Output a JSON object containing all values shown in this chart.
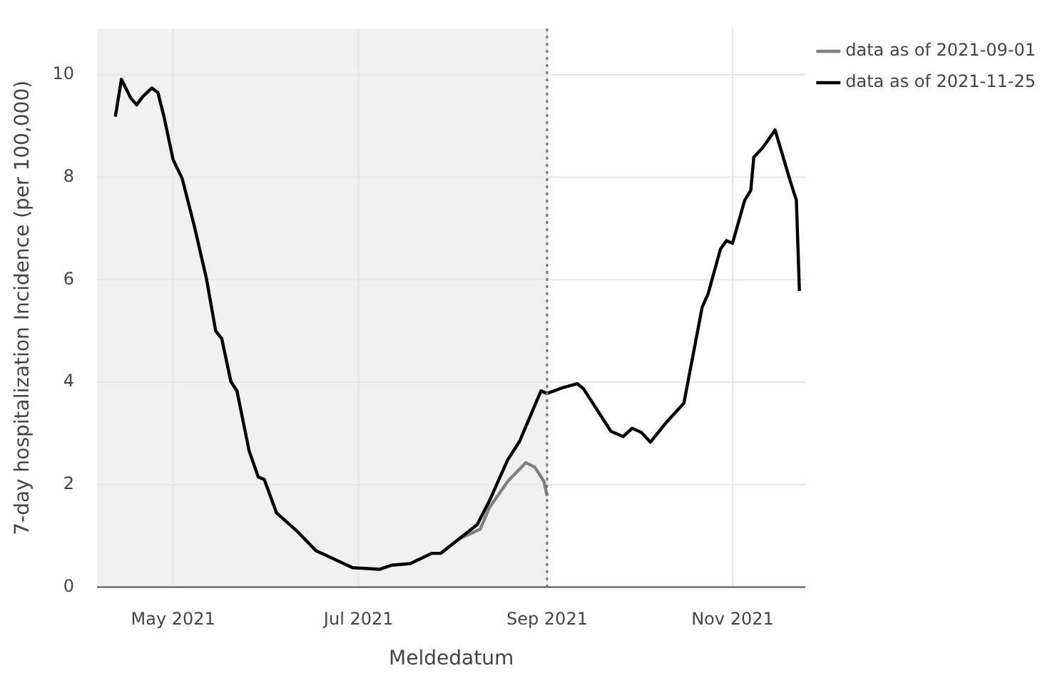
{
  "chart_data": {
    "type": "line",
    "xlabel": "Meldedatum",
    "ylabel": "7-day hospitalization Incidence (per 100,000)",
    "xlim": [
      "2021-04-06",
      "2021-11-25"
    ],
    "xticks": [
      {
        "value": "2021-05-01",
        "label": "May 2021"
      },
      {
        "value": "2021-07-01",
        "label": "Jul 2021"
      },
      {
        "value": "2021-09-01",
        "label": "Sep 2021"
      },
      {
        "value": "2021-11-01",
        "label": "Nov 2021"
      }
    ],
    "ylim": [
      0,
      10.9
    ],
    "yticks": [
      0,
      2,
      4,
      6,
      8,
      10
    ],
    "grid": true,
    "legend": "top right",
    "line_style": "solid",
    "marker": "none",
    "bands": [
      {
        "axis": "x",
        "from": "2021-04-06",
        "to": "2021-09-01",
        "color": "#f0f0f0"
      }
    ],
    "ref_lines": [
      {
        "axis": "x",
        "value": "2021-09-01",
        "color": "#777777",
        "line_style": "dotted"
      }
    ],
    "series": [
      {
        "name": "data as of 2021-09-01",
        "color": "#808080",
        "x": [
          "2021-08-03",
          "2021-08-10",
          "2021-08-13",
          "2021-08-19",
          "2021-08-25",
          "2021-08-28",
          "2021-08-31",
          "2021-09-01"
        ],
        "values": [
          0.94,
          1.13,
          1.55,
          2.06,
          2.43,
          2.34,
          2.06,
          1.78
        ]
      },
      {
        "name": "data as of 2021-11-25",
        "color": "#000000",
        "x": [
          "2021-04-12",
          "2021-04-14",
          "2021-04-17",
          "2021-04-19",
          "2021-04-21",
          "2021-04-24",
          "2021-04-26",
          "2021-04-28",
          "2021-05-01",
          "2021-05-04",
          "2021-05-08",
          "2021-05-12",
          "2021-05-15",
          "2021-05-17",
          "2021-05-20",
          "2021-05-22",
          "2021-05-26",
          "2021-05-29",
          "2021-05-31",
          "2021-06-04",
          "2021-06-11",
          "2021-06-17",
          "2021-06-24",
          "2021-06-29",
          "2021-07-08",
          "2021-07-12",
          "2021-07-18",
          "2021-07-25",
          "2021-07-28",
          "2021-08-03",
          "2021-08-09",
          "2021-08-13",
          "2021-08-19",
          "2021-08-23",
          "2021-08-27",
          "2021-08-30",
          "2021-09-01",
          "2021-09-06",
          "2021-09-11",
          "2021-09-13",
          "2021-09-22",
          "2021-09-26",
          "2021-09-29",
          "2021-10-02",
          "2021-10-05",
          "2021-10-10",
          "2021-10-16",
          "2021-10-22",
          "2021-10-24",
          "2021-10-28",
          "2021-10-30",
          "2021-11-01",
          "2021-11-05",
          "2021-11-07",
          "2021-11-08",
          "2021-11-11",
          "2021-11-15",
          "2021-11-20",
          "2021-11-22",
          "2021-11-23"
        ],
        "values": [
          9.18,
          9.91,
          9.55,
          9.41,
          9.57,
          9.74,
          9.65,
          9.18,
          8.34,
          7.97,
          7.04,
          6.01,
          5.0,
          4.85,
          4.01,
          3.83,
          2.66,
          2.15,
          2.1,
          1.45,
          1.08,
          0.71,
          0.52,
          0.38,
          0.35,
          0.43,
          0.46,
          0.66,
          0.66,
          0.94,
          1.22,
          1.68,
          2.48,
          2.85,
          3.41,
          3.83,
          3.78,
          3.89,
          3.97,
          3.87,
          3.04,
          2.94,
          3.1,
          3.02,
          2.83,
          3.2,
          3.59,
          5.46,
          5.73,
          6.59,
          6.76,
          6.71,
          7.55,
          7.74,
          8.39,
          8.58,
          8.92,
          7.92,
          7.55,
          5.78
        ]
      }
    ]
  }
}
